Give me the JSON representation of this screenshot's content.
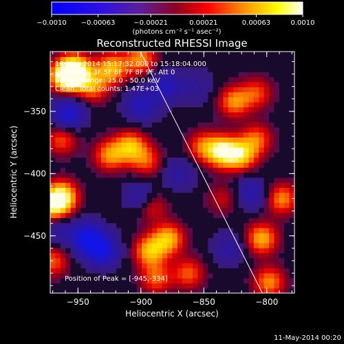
{
  "chart_data": {
    "type": "heatmap",
    "title": "Reconstructed RHESSI Image",
    "xlabel": "Heliocentric X (arcsec)",
    "ylabel": "Heliocentric Y (arcsec)",
    "xlim": [
      -972,
      -778
    ],
    "ylim": [
      -496,
      -302
    ],
    "x_ticks": [
      {
        "value": -950,
        "label": "−950"
      },
      {
        "value": -900,
        "label": "−900"
      },
      {
        "value": -850,
        "label": "−850"
      },
      {
        "value": -800,
        "label": "−800"
      }
    ],
    "y_ticks": [
      {
        "value": -350,
        "label": "−350"
      },
      {
        "value": -400,
        "label": "−400"
      },
      {
        "value": -450,
        "label": "−450"
      }
    ],
    "colorbar": {
      "range": [
        -0.001,
        0.001
      ],
      "ticks": [
        {
          "value": -0.001,
          "label": "−0.0010"
        },
        {
          "value": -0.00063,
          "label": "−0.00063"
        },
        {
          "value": -0.00021,
          "label": "−0.00021"
        },
        {
          "value": 0.00021,
          "label": "0.00021"
        },
        {
          "value": 0.00063,
          "label": "0.00063"
        },
        {
          "value": 0.001,
          "label": "0.0010"
        }
      ],
      "unit_label": "(photons cm⁻² s⁻¹ asec⁻²)",
      "colors": [
        "#0000ff",
        "#5020c0",
        "#ff0000",
        "#ff8c00",
        "#ffff00",
        "#ffffff"
      ]
    },
    "annotations": [
      "10-May-2014 15:17:32.000 to 15:18:04.000",
      "Detectors: 3F 5F 6F 7F 8F 9F, Att 0",
      "Energy Range: 25.0 - 50.0 keV",
      "Clean. Total counts: 1.47E+03"
    ],
    "peak_label": "Position of Peak = [-945,-334]",
    "limb_line": {
      "x": [
        -900.5,
        -803.5
      ],
      "y": [
        -302,
        -496
      ]
    },
    "sources": [
      {
        "x": -952,
        "y": -317,
        "value": 0.001
      },
      {
        "x": -960,
        "y": -322,
        "value": 0.0009
      },
      {
        "x": -923,
        "y": -315,
        "value": 0.0007
      },
      {
        "x": -900,
        "y": -308,
        "value": 0.0006
      },
      {
        "x": -938,
        "y": -330,
        "value": 0.00055
      },
      {
        "x": -826,
        "y": -342,
        "value": 0.0006
      },
      {
        "x": -808,
        "y": -335,
        "value": 0.00045
      },
      {
        "x": -808,
        "y": -372,
        "value": 0.0005
      },
      {
        "x": -835,
        "y": -382,
        "value": 0.0009
      },
      {
        "x": -820,
        "y": -385,
        "value": 0.0007
      },
      {
        "x": -851,
        "y": -378,
        "value": 0.0005
      },
      {
        "x": -963,
        "y": -372,
        "value": 0.0005
      },
      {
        "x": -925,
        "y": -385,
        "value": 0.0006
      },
      {
        "x": -908,
        "y": -378,
        "value": 0.0007
      },
      {
        "x": -895,
        "y": -390,
        "value": 0.00045
      },
      {
        "x": -963,
        "y": -418,
        "value": 0.0009
      },
      {
        "x": -970,
        "y": -427,
        "value": 0.0007
      },
      {
        "x": -892,
        "y": -425,
        "value": 0.00045
      },
      {
        "x": -878,
        "y": -452,
        "value": 0.0007
      },
      {
        "x": -893,
        "y": -462,
        "value": 0.0007
      },
      {
        "x": -888,
        "y": -484,
        "value": 0.0005
      },
      {
        "x": -862,
        "y": -480,
        "value": 0.0005
      },
      {
        "x": -804,
        "y": -452,
        "value": 0.0007
      },
      {
        "x": -788,
        "y": -420,
        "value": 0.0006
      },
      {
        "x": -798,
        "y": -487,
        "value": 0.0006
      },
      {
        "x": -970,
        "y": -470,
        "value": 0.0005
      },
      {
        "x": -835,
        "y": -420,
        "value": 0.0003
      },
      {
        "x": -942,
        "y": -452,
        "value": -0.001
      },
      {
        "x": -930,
        "y": -462,
        "value": -0.0008
      },
      {
        "x": -958,
        "y": -352,
        "value": -0.0008
      },
      {
        "x": -880,
        "y": -330,
        "value": -0.0006
      },
      {
        "x": -900,
        "y": -345,
        "value": -0.0006
      },
      {
        "x": -900,
        "y": -418,
        "value": -0.0005
      },
      {
        "x": -870,
        "y": -400,
        "value": -0.0004
      },
      {
        "x": -812,
        "y": -415,
        "value": -0.0005
      },
      {
        "x": -830,
        "y": -460,
        "value": -0.0004
      },
      {
        "x": -965,
        "y": -445,
        "value": -0.0004
      },
      {
        "x": -855,
        "y": -330,
        "value": -0.0003
      }
    ]
  },
  "footer": {
    "timestamp": "11-May-2014 00:20"
  }
}
